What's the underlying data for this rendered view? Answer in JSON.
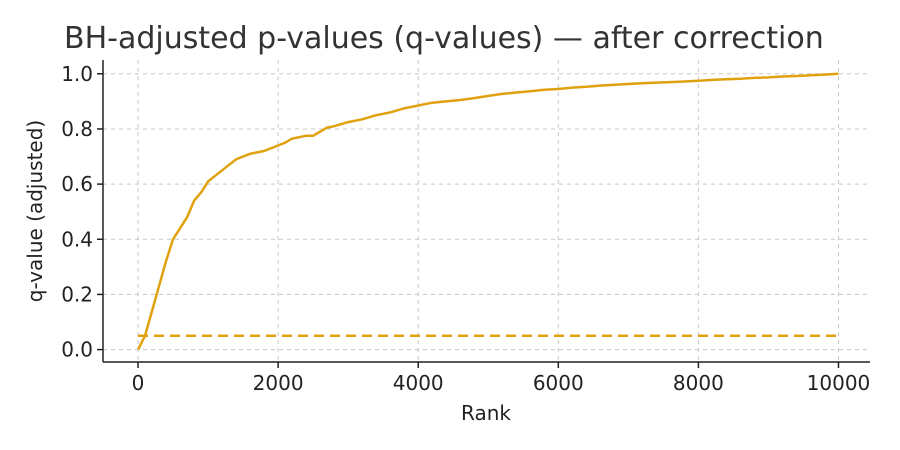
{
  "chart_data": {
    "type": "line",
    "title": "BH-adjusted p-values (q-values) — after correction",
    "xlabel": "Rank",
    "ylabel": "q-value (adjusted)",
    "xlim": [
      -500,
      10450
    ],
    "ylim": [
      -0.045,
      1.05
    ],
    "xticks": [
      0,
      2000,
      4000,
      6000,
      8000,
      10000
    ],
    "xtick_labels": [
      "0",
      "2000",
      "4000",
      "6000",
      "8000",
      "10000"
    ],
    "yticks": [
      0.0,
      0.2,
      0.4,
      0.6,
      0.8,
      1.0
    ],
    "ytick_labels": [
      "0.0",
      "0.2",
      "0.4",
      "0.6",
      "0.8",
      "1.0"
    ],
    "grid": true,
    "grid_style": "dashed",
    "series": [
      {
        "style": "solid",
        "color": "#E0A10F",
        "x": [
          1,
          100,
          200,
          300,
          400,
          500,
          600,
          700,
          800,
          900,
          1000,
          1100,
          1200,
          1300,
          1400,
          1500,
          1600,
          1800,
          2000,
          2100,
          2200,
          2300,
          2400,
          2500,
          2600,
          2700,
          2800,
          3000,
          3200,
          3400,
          3600,
          3800,
          4000,
          4200,
          4400,
          4600,
          4800,
          5000,
          5200,
          5400,
          5600,
          5800,
          6000,
          6200,
          6400,
          6600,
          6800,
          7000,
          7200,
          7400,
          7600,
          7800,
          8000,
          8200,
          8400,
          8600,
          8800,
          9000,
          9200,
          9400,
          9600,
          9800,
          10000
        ],
        "y": [
          0.0,
          0.05,
          0.14,
          0.23,
          0.32,
          0.4,
          0.44,
          0.48,
          0.54,
          0.57,
          0.61,
          0.63,
          0.65,
          0.67,
          0.69,
          0.7,
          0.71,
          0.72,
          0.74,
          0.75,
          0.765,
          0.77,
          0.775,
          0.775,
          0.79,
          0.805,
          0.81,
          0.825,
          0.835,
          0.85,
          0.86,
          0.875,
          0.885,
          0.895,
          0.9,
          0.905,
          0.912,
          0.92,
          0.927,
          0.932,
          0.937,
          0.942,
          0.945,
          0.95,
          0.953,
          0.957,
          0.96,
          0.963,
          0.966,
          0.968,
          0.97,
          0.972,
          0.975,
          0.978,
          0.98,
          0.982,
          0.985,
          0.987,
          0.99,
          0.992,
          0.995,
          0.997,
          1.0
        ]
      },
      {
        "style": "dashed",
        "color": "#E0A10F",
        "x": [
          0,
          10000
        ],
        "y": [
          0.05,
          0.05
        ]
      }
    ]
  }
}
